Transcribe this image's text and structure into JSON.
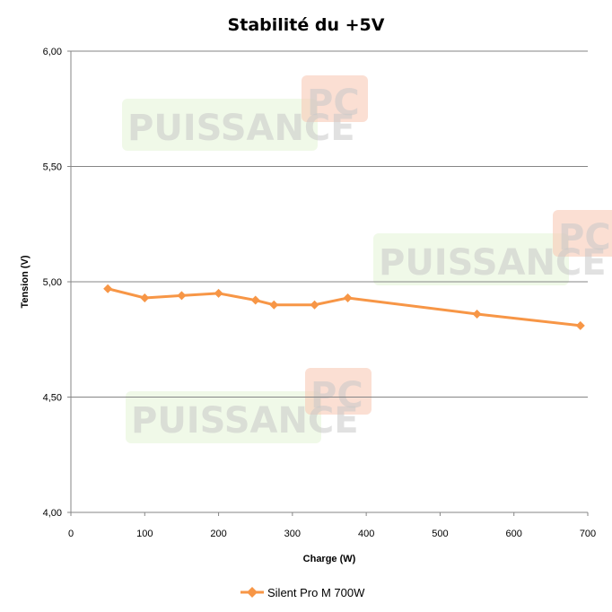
{
  "chart_data": {
    "type": "line",
    "title": "Stabilité du +5V",
    "xlabel": "Charge (W)",
    "ylabel": "Tension (V)",
    "xlim": [
      0,
      700
    ],
    "ylim": [
      4.0,
      6.0
    ],
    "x_ticks": [
      "0",
      "100",
      "200",
      "300",
      "400",
      "500",
      "600",
      "700"
    ],
    "y_ticks": [
      "4,00",
      "4,50",
      "5,00",
      "5,50",
      "6,00"
    ],
    "grid": "horizontal",
    "legend_position": "bottom",
    "series": [
      {
        "name": "Silent Pro M 700W",
        "color": "#f79646",
        "x": [
          50,
          100,
          150,
          200,
          250,
          275,
          330,
          375,
          550,
          690
        ],
        "y": [
          4.97,
          4.93,
          4.94,
          4.95,
          4.92,
          4.9,
          4.9,
          4.93,
          4.86,
          4.81
        ]
      }
    ]
  },
  "watermark": "PUISSANCE PC"
}
